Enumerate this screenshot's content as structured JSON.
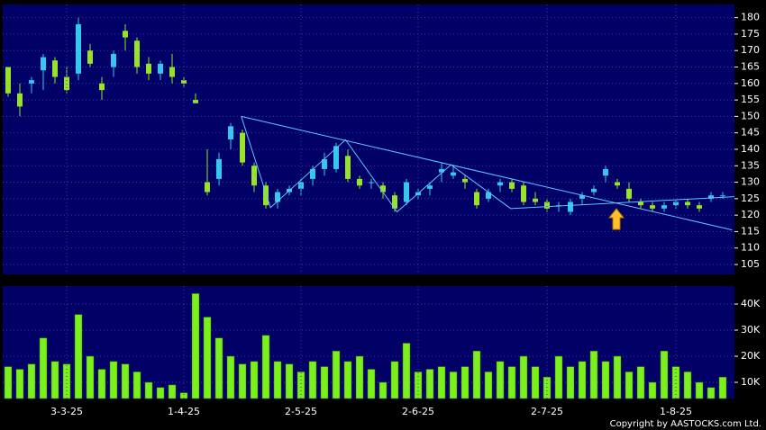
{
  "chart_data": [
    {
      "type": "candlestick",
      "up_color": "#35c8ee",
      "down_color": "#99e22c",
      "grid": true,
      "ylim": [
        102,
        184
      ],
      "yticks": [
        105,
        110,
        115,
        120,
        125,
        130,
        135,
        140,
        145,
        150,
        155,
        160,
        165,
        170,
        175,
        180
      ],
      "ohlc": [
        [
          165,
          165,
          156,
          157
        ],
        [
          157,
          160,
          150,
          153
        ],
        [
          160,
          162,
          157,
          161
        ],
        [
          164,
          169,
          158,
          168
        ],
        [
          167,
          168,
          160,
          162
        ],
        [
          162,
          165,
          157,
          158
        ],
        [
          163,
          180,
          161,
          178
        ],
        [
          170,
          172,
          165,
          166
        ],
        [
          160,
          162,
          155,
          158
        ],
        [
          165,
          170,
          162,
          169
        ],
        [
          176,
          178,
          170,
          174
        ],
        [
          173,
          174,
          163,
          165
        ],
        [
          166,
          168,
          161,
          163
        ],
        [
          163,
          167,
          161,
          166
        ],
        [
          165,
          169,
          160,
          162
        ],
        [
          161,
          162,
          159,
          160
        ],
        [
          155,
          157,
          154,
          154
        ],
        [
          130,
          140,
          126,
          127
        ],
        [
          131,
          139,
          129,
          137
        ],
        [
          143,
          148,
          140,
          147
        ],
        [
          145,
          146,
          135,
          136
        ],
        [
          135,
          136,
          127,
          129
        ],
        [
          129,
          130,
          122,
          123
        ],
        [
          124,
          128,
          122,
          127
        ],
        [
          127,
          129,
          126,
          128
        ],
        [
          128,
          131,
          126,
          130
        ],
        [
          131,
          135,
          129,
          134
        ],
        [
          134,
          139,
          132,
          137
        ],
        [
          134,
          142,
          133,
          141
        ],
        [
          138,
          140,
          130,
          131
        ],
        [
          131,
          132,
          128,
          129
        ],
        [
          130,
          131,
          128,
          130
        ],
        [
          129,
          130,
          125,
          127
        ],
        [
          126,
          127,
          121,
          122
        ],
        [
          124,
          131,
          123,
          130
        ],
        [
          126,
          128,
          125,
          127
        ],
        [
          128,
          130,
          126,
          129
        ],
        [
          133,
          136,
          130,
          134
        ],
        [
          132,
          135,
          131,
          133
        ],
        [
          131,
          132,
          128,
          130
        ],
        [
          127,
          128,
          122,
          123
        ],
        [
          125,
          128,
          124,
          127
        ],
        [
          129,
          131,
          127,
          130
        ],
        [
          130,
          131,
          127,
          128
        ],
        [
          129,
          130,
          123,
          124
        ],
        [
          125,
          127,
          123,
          124
        ],
        [
          124,
          125,
          121,
          122
        ],
        [
          123,
          124,
          121,
          123
        ],
        [
          121,
          125,
          120,
          124
        ],
        [
          125,
          127,
          123,
          126
        ],
        [
          127,
          129,
          126,
          128
        ],
        [
          132,
          135,
          130,
          134
        ],
        [
          130,
          131,
          128,
          129
        ],
        [
          128,
          130,
          124,
          125
        ],
        [
          124,
          125,
          122,
          123
        ],
        [
          123,
          124,
          121,
          122
        ],
        [
          122,
          124,
          121,
          123
        ],
        [
          123,
          125,
          122,
          124
        ],
        [
          124,
          125,
          122,
          123
        ],
        [
          123,
          124,
          121,
          122
        ],
        [
          125,
          127,
          124,
          126
        ],
        [
          126,
          127,
          125,
          126
        ]
      ],
      "trendlines": [
        {
          "color": "#5fc8ff",
          "points": [
            [
              19.9,
              150
            ],
            [
              61.8,
              115.5
            ]
          ]
        },
        {
          "color": "#5fc8ff",
          "points": [
            [
              19.9,
              150
            ],
            [
              22.4,
              122.3
            ],
            [
              28.8,
              142.9
            ],
            [
              33.2,
              121
            ],
            [
              37.8,
              135.3
            ],
            [
              42.9,
              122
            ],
            [
              62,
              125.6
            ]
          ]
        }
      ]
    },
    {
      "type": "bar",
      "color": "#7cf01c",
      "grid": true,
      "ylim": [
        3800,
        46900
      ],
      "yticks": [
        {
          "value": 10000,
          "label": "10K"
        },
        {
          "value": 20000,
          "label": "20K"
        },
        {
          "value": 30000,
          "label": "30K"
        },
        {
          "value": 40000,
          "label": "40K"
        }
      ],
      "categories": [
        null,
        null,
        null,
        null,
        null,
        "3-3-25",
        null,
        null,
        null,
        null,
        null,
        null,
        null,
        null,
        null,
        "1-4-25",
        null,
        null,
        null,
        null,
        null,
        null,
        null,
        null,
        null,
        "2-5-25",
        null,
        null,
        null,
        null,
        null,
        null,
        null,
        null,
        null,
        "2-6-25",
        null,
        null,
        null,
        null,
        null,
        null,
        null,
        null,
        null,
        null,
        "2-7-25",
        null,
        null,
        null,
        null,
        null,
        null,
        null,
        null,
        null,
        null,
        "1-8-25",
        null,
        null,
        null,
        null
      ],
      "values": [
        16000,
        15000,
        17000,
        27000,
        18000,
        17000,
        36000,
        20000,
        15000,
        18000,
        17000,
        14000,
        10000,
        8000,
        9000,
        6000,
        44000,
        35000,
        27000,
        20000,
        17000,
        18000,
        28000,
        18000,
        17000,
        14000,
        18000,
        16000,
        22000,
        18000,
        20000,
        15000,
        10000,
        18000,
        25000,
        14000,
        15000,
        16000,
        14000,
        16000,
        22000,
        14000,
        18000,
        16000,
        20000,
        16000,
        12000,
        20000,
        16000,
        18000,
        22000,
        18000,
        20000,
        14000,
        16000,
        10000,
        22000,
        16000,
        14000,
        10000,
        8000,
        12000
      ]
    }
  ],
  "footer": "Copyright by AASTOCKS.com Ltd."
}
